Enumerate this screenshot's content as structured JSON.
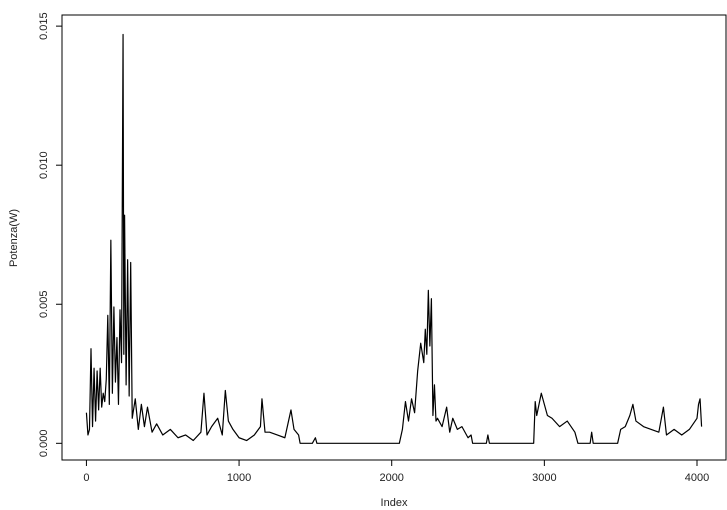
{
  "chart_data": {
    "type": "line",
    "x_label": "Index",
    "y_label": "Potenza(W)",
    "x": [
      0,
      10,
      20,
      30,
      40,
      50,
      60,
      70,
      80,
      90,
      100,
      110,
      120,
      130,
      140,
      150,
      160,
      170,
      180,
      190,
      200,
      210,
      220,
      230,
      240,
      245,
      250,
      260,
      270,
      280,
      290,
      300,
      320,
      340,
      360,
      380,
      400,
      430,
      460,
      500,
      550,
      600,
      650,
      700,
      750,
      770,
      790,
      820,
      860,
      890,
      910,
      930,
      960,
      1000,
      1050,
      1100,
      1140,
      1150,
      1170,
      1200,
      1250,
      1300,
      1340,
      1360,
      1390,
      1400,
      1480,
      1500,
      1510,
      2050,
      2070,
      2090,
      2110,
      2130,
      2150,
      2170,
      2190,
      2210,
      2220,
      2230,
      2240,
      2250,
      2260,
      2270,
      2280,
      2290,
      2300,
      2330,
      2360,
      2380,
      2400,
      2430,
      2460,
      2500,
      2520,
      2530,
      2540,
      2620,
      2630,
      2640,
      2930,
      2940,
      2950,
      2980,
      3000,
      3020,
      3050,
      3100,
      3150,
      3200,
      3220,
      3240,
      3300,
      3310,
      3320,
      3480,
      3500,
      3530,
      3560,
      3580,
      3600,
      3650,
      3700,
      3750,
      3780,
      3800,
      3850,
      3900,
      3950,
      4000,
      4010,
      4020,
      4030
    ],
    "series": [
      {
        "color": "#000000",
        "values": [
          0.0011,
          0.0003,
          0.0005,
          0.0034,
          0.0006,
          0.0027,
          0.0008,
          0.0026,
          0.0012,
          0.0027,
          0.0013,
          0.0018,
          0.0015,
          0.0023,
          0.0046,
          0.0014,
          0.0073,
          0.0018,
          0.0049,
          0.0022,
          0.0038,
          0.0014,
          0.0048,
          0.0029,
          0.0147,
          0.0032,
          0.0082,
          0.0021,
          0.0066,
          0.0017,
          0.0065,
          0.0009,
          0.0016,
          0.0005,
          0.0014,
          0.0006,
          0.0013,
          0.0004,
          0.0007,
          0.0003,
          0.0005,
          0.0002,
          0.0003,
          0.0001,
          0.0004,
          0.0018,
          0.0003,
          0.0006,
          0.0009,
          0.0003,
          0.0019,
          0.0008,
          0.0005,
          0.0002,
          0.0001,
          0.0003,
          0.0006,
          0.0016,
          0.0004,
          0.0004,
          0.0003,
          0.0002,
          0.0012,
          0.0005,
          0.0003,
          0,
          0,
          0.0002,
          0,
          0,
          0.0005,
          0.0015,
          0.0008,
          0.0016,
          0.0011,
          0.0026,
          0.0036,
          0.0029,
          0.0041,
          0.0032,
          0.0055,
          0.0035,
          0.0052,
          0.001,
          0.0021,
          0.0008,
          0.0009,
          0.0006,
          0.0013,
          0.0004,
          0.0009,
          0.0005,
          0.0006,
          0.0002,
          0.0003,
          0,
          0,
          0,
          0.0003,
          0,
          0,
          0.0015,
          0.001,
          0.0018,
          0.0014,
          0.001,
          0.0009,
          0.0006,
          0.0008,
          0.0004,
          0,
          0,
          0,
          0.0004,
          0,
          0,
          0.0005,
          0.0006,
          0.001,
          0.0014,
          0.0008,
          0.0006,
          0.0005,
          0.0004,
          0.0013,
          0.0003,
          0.0005,
          0.0003,
          0.0005,
          0.0009,
          0.0014,
          0.0016,
          0.0006
        ]
      }
    ],
    "xlim": [
      -160,
      4190
    ],
    "ylim": [
      -0.0006,
      0.0154
    ],
    "xticks": [
      0,
      1000,
      2000,
      3000,
      4000
    ],
    "yticks": [
      {
        "value": 0,
        "label": "0.000"
      },
      {
        "value": 0.005,
        "label": "0.005"
      },
      {
        "value": 0.01,
        "label": "0.010"
      },
      {
        "value": 0.015,
        "label": "0.015"
      }
    ]
  }
}
